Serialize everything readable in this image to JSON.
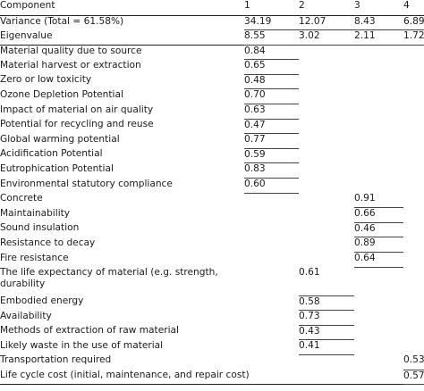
{
  "header": {
    "component_label": "Component",
    "cols": [
      "1",
      "2",
      "3",
      "4"
    ]
  },
  "summary_rows": [
    {
      "label": "Variance (Total = 61.58%)",
      "values": [
        "34.19",
        "12.07",
        "8.43",
        "6.89"
      ]
    },
    {
      "label": "Eigenvalue",
      "values": [
        "8.55",
        "3.02",
        "2.11",
        "1.72"
      ]
    }
  ],
  "rows": [
    {
      "label": "Material quality due to source",
      "values": [
        "0.84",
        "",
        "",
        ""
      ]
    },
    {
      "label": " Material harvest or extraction",
      "values": [
        "0.65",
        "",
        "",
        ""
      ]
    },
    {
      "label": "Zero or low toxicity",
      "values": [
        "0.48",
        "",
        "",
        ""
      ]
    },
    {
      "label": "Ozone Depletion Potential",
      "values": [
        "0.70",
        "",
        "",
        ""
      ]
    },
    {
      "label": "Impact of material on air quality",
      "values": [
        "0.63",
        "",
        "",
        ""
      ]
    },
    {
      "label": "Potential for recycling and reuse",
      "values": [
        "0.47",
        "",
        "",
        ""
      ]
    },
    {
      "label": "Global warming potential",
      "values": [
        "0.77",
        "",
        "",
        ""
      ]
    },
    {
      "label": "Acidification Potential",
      "values": [
        "0.59",
        "",
        "",
        ""
      ]
    },
    {
      "label": "Eutrophication Potential",
      "values": [
        "0.83",
        "",
        "",
        ""
      ]
    },
    {
      "label": "Environmental statutory compliance",
      "values": [
        "0.60",
        "",
        "",
        ""
      ]
    },
    {
      "label": "Concrete",
      "values": [
        "",
        "",
        "0.91",
        ""
      ]
    },
    {
      "label": "Maintainability",
      "values": [
        "",
        "",
        "0.66",
        ""
      ]
    },
    {
      "label": "Sound insulation",
      "values": [
        "",
        "",
        "0.46",
        ""
      ]
    },
    {
      "label": "Resistance to decay",
      "values": [
        "",
        "",
        "0.89",
        ""
      ]
    },
    {
      "label": "Fire resistance",
      "values": [
        "",
        "",
        "0.64",
        ""
      ]
    },
    {
      "label": "The life expectancy of material (e.g. strength, durability",
      "values": [
        "",
        "0.61",
        "",
        ""
      ],
      "tall": true
    },
    {
      "label": "Embodied energy",
      "values": [
        "",
        "0.58",
        "",
        ""
      ]
    },
    {
      "label": "Availability",
      "values": [
        "",
        "0.73",
        "",
        ""
      ]
    },
    {
      "label": "Methods of extraction of raw material",
      "values": [
        "",
        "0.43",
        "",
        ""
      ]
    },
    {
      "label": "Likely waste in the use of material",
      "values": [
        "",
        "0.41",
        "",
        ""
      ]
    },
    {
      "label": "Transportation required",
      "values": [
        "",
        "",
        "",
        "0.53"
      ]
    },
    {
      "label": "Life cycle cost (initial, maintenance, and repair cost)",
      "values": [
        "",
        "",
        "",
        "0.57"
      ]
    }
  ]
}
